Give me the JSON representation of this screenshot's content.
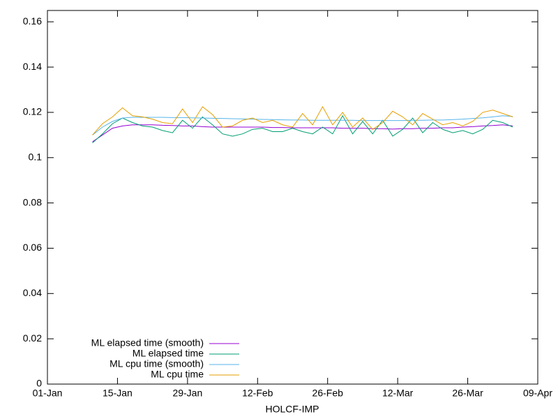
{
  "chart_data": {
    "type": "line",
    "xlabel": "HOLCF-IMP",
    "x": [
      9,
      11,
      13,
      15,
      17,
      19,
      21,
      23,
      25,
      27,
      29,
      31,
      33,
      35,
      37,
      39,
      41,
      43,
      45,
      47,
      49,
      51,
      53,
      55,
      57,
      59,
      61,
      63,
      65,
      67,
      69,
      71,
      73,
      75,
      77,
      79,
      81,
      83,
      85,
      87,
      89,
      91,
      93
    ],
    "xlim": [
      0,
      98
    ],
    "xticks": [
      {
        "value": 0,
        "label": "01-Jan"
      },
      {
        "value": 14,
        "label": "15-Jan"
      },
      {
        "value": 28,
        "label": "29-Jan"
      },
      {
        "value": 42,
        "label": "12-Feb"
      },
      {
        "value": 56,
        "label": "26-Feb"
      },
      {
        "value": 70,
        "label": "12-Mar"
      },
      {
        "value": 84,
        "label": "26-Mar"
      },
      {
        "value": 98,
        "label": "09-Apr"
      }
    ],
    "ylim": [
      0,
      0.165
    ],
    "yticks": [
      0,
      0.02,
      0.04,
      0.06,
      0.08,
      0.1,
      0.12,
      0.14,
      0.16
    ],
    "legend": "bottom left",
    "series": [
      {
        "name": "ML elapsed time (smooth)",
        "color": "#9400d3",
        "values": [
          0.107,
          0.11,
          0.113,
          0.114,
          0.1145,
          0.1145,
          0.1145,
          0.1143,
          0.1142,
          0.114,
          0.114,
          0.1137,
          0.1135,
          0.1135,
          0.1135,
          0.1135,
          0.1135,
          0.1135,
          0.1133,
          0.1133,
          0.1132,
          0.1132,
          0.1132,
          0.1132,
          0.1132,
          0.113,
          0.113,
          0.113,
          0.1128,
          0.1128,
          0.1126,
          0.1128,
          0.1128,
          0.113,
          0.113,
          0.1132,
          0.1132,
          0.1135,
          0.1137,
          0.114,
          0.1142,
          0.1145,
          0.114
        ]
      },
      {
        "name": "ML elapsed time",
        "color": "#009e73",
        "values": [
          0.1065,
          0.1105,
          0.115,
          0.1175,
          0.1155,
          0.114,
          0.1135,
          0.112,
          0.111,
          0.1165,
          0.113,
          0.118,
          0.1145,
          0.1105,
          0.1095,
          0.1105,
          0.1125,
          0.113,
          0.1115,
          0.1115,
          0.113,
          0.1115,
          0.1105,
          0.1135,
          0.1105,
          0.1185,
          0.1105,
          0.116,
          0.1105,
          0.1165,
          0.1095,
          0.1125,
          0.1175,
          0.111,
          0.1155,
          0.1125,
          0.111,
          0.112,
          0.1105,
          0.1125,
          0.1165,
          0.1155,
          0.1135
        ]
      },
      {
        "name": "ML cpu time (smooth)",
        "color": "#56b4e9",
        "values": [
          0.11,
          0.1135,
          0.116,
          0.1175,
          0.1178,
          0.1178,
          0.1178,
          0.1178,
          0.1177,
          0.1177,
          0.1176,
          0.1175,
          0.1174,
          0.1173,
          0.1172,
          0.1171,
          0.117,
          0.1169,
          0.1168,
          0.1167,
          0.1166,
          0.1166,
          0.1165,
          0.1165,
          0.1165,
          0.1165,
          0.1165,
          0.1164,
          0.1164,
          0.1164,
          0.1164,
          0.1164,
          0.1165,
          0.1165,
          0.1166,
          0.1166,
          0.1168,
          0.117,
          0.1173,
          0.1176,
          0.118,
          0.1185,
          0.1182
        ]
      },
      {
        "name": "ML cpu time",
        "color": "#e69f00",
        "values": [
          0.11,
          0.115,
          0.118,
          0.122,
          0.1185,
          0.118,
          0.117,
          0.1155,
          0.115,
          0.1215,
          0.1155,
          0.1225,
          0.119,
          0.1135,
          0.114,
          0.1165,
          0.1175,
          0.1155,
          0.1165,
          0.1145,
          0.1135,
          0.1195,
          0.1145,
          0.1225,
          0.1145,
          0.12,
          0.1135,
          0.1175,
          0.1125,
          0.1155,
          0.1205,
          0.118,
          0.1145,
          0.1195,
          0.117,
          0.1145,
          0.1155,
          0.114,
          0.116,
          0.12,
          0.121,
          0.1195,
          0.118
        ]
      }
    ]
  }
}
